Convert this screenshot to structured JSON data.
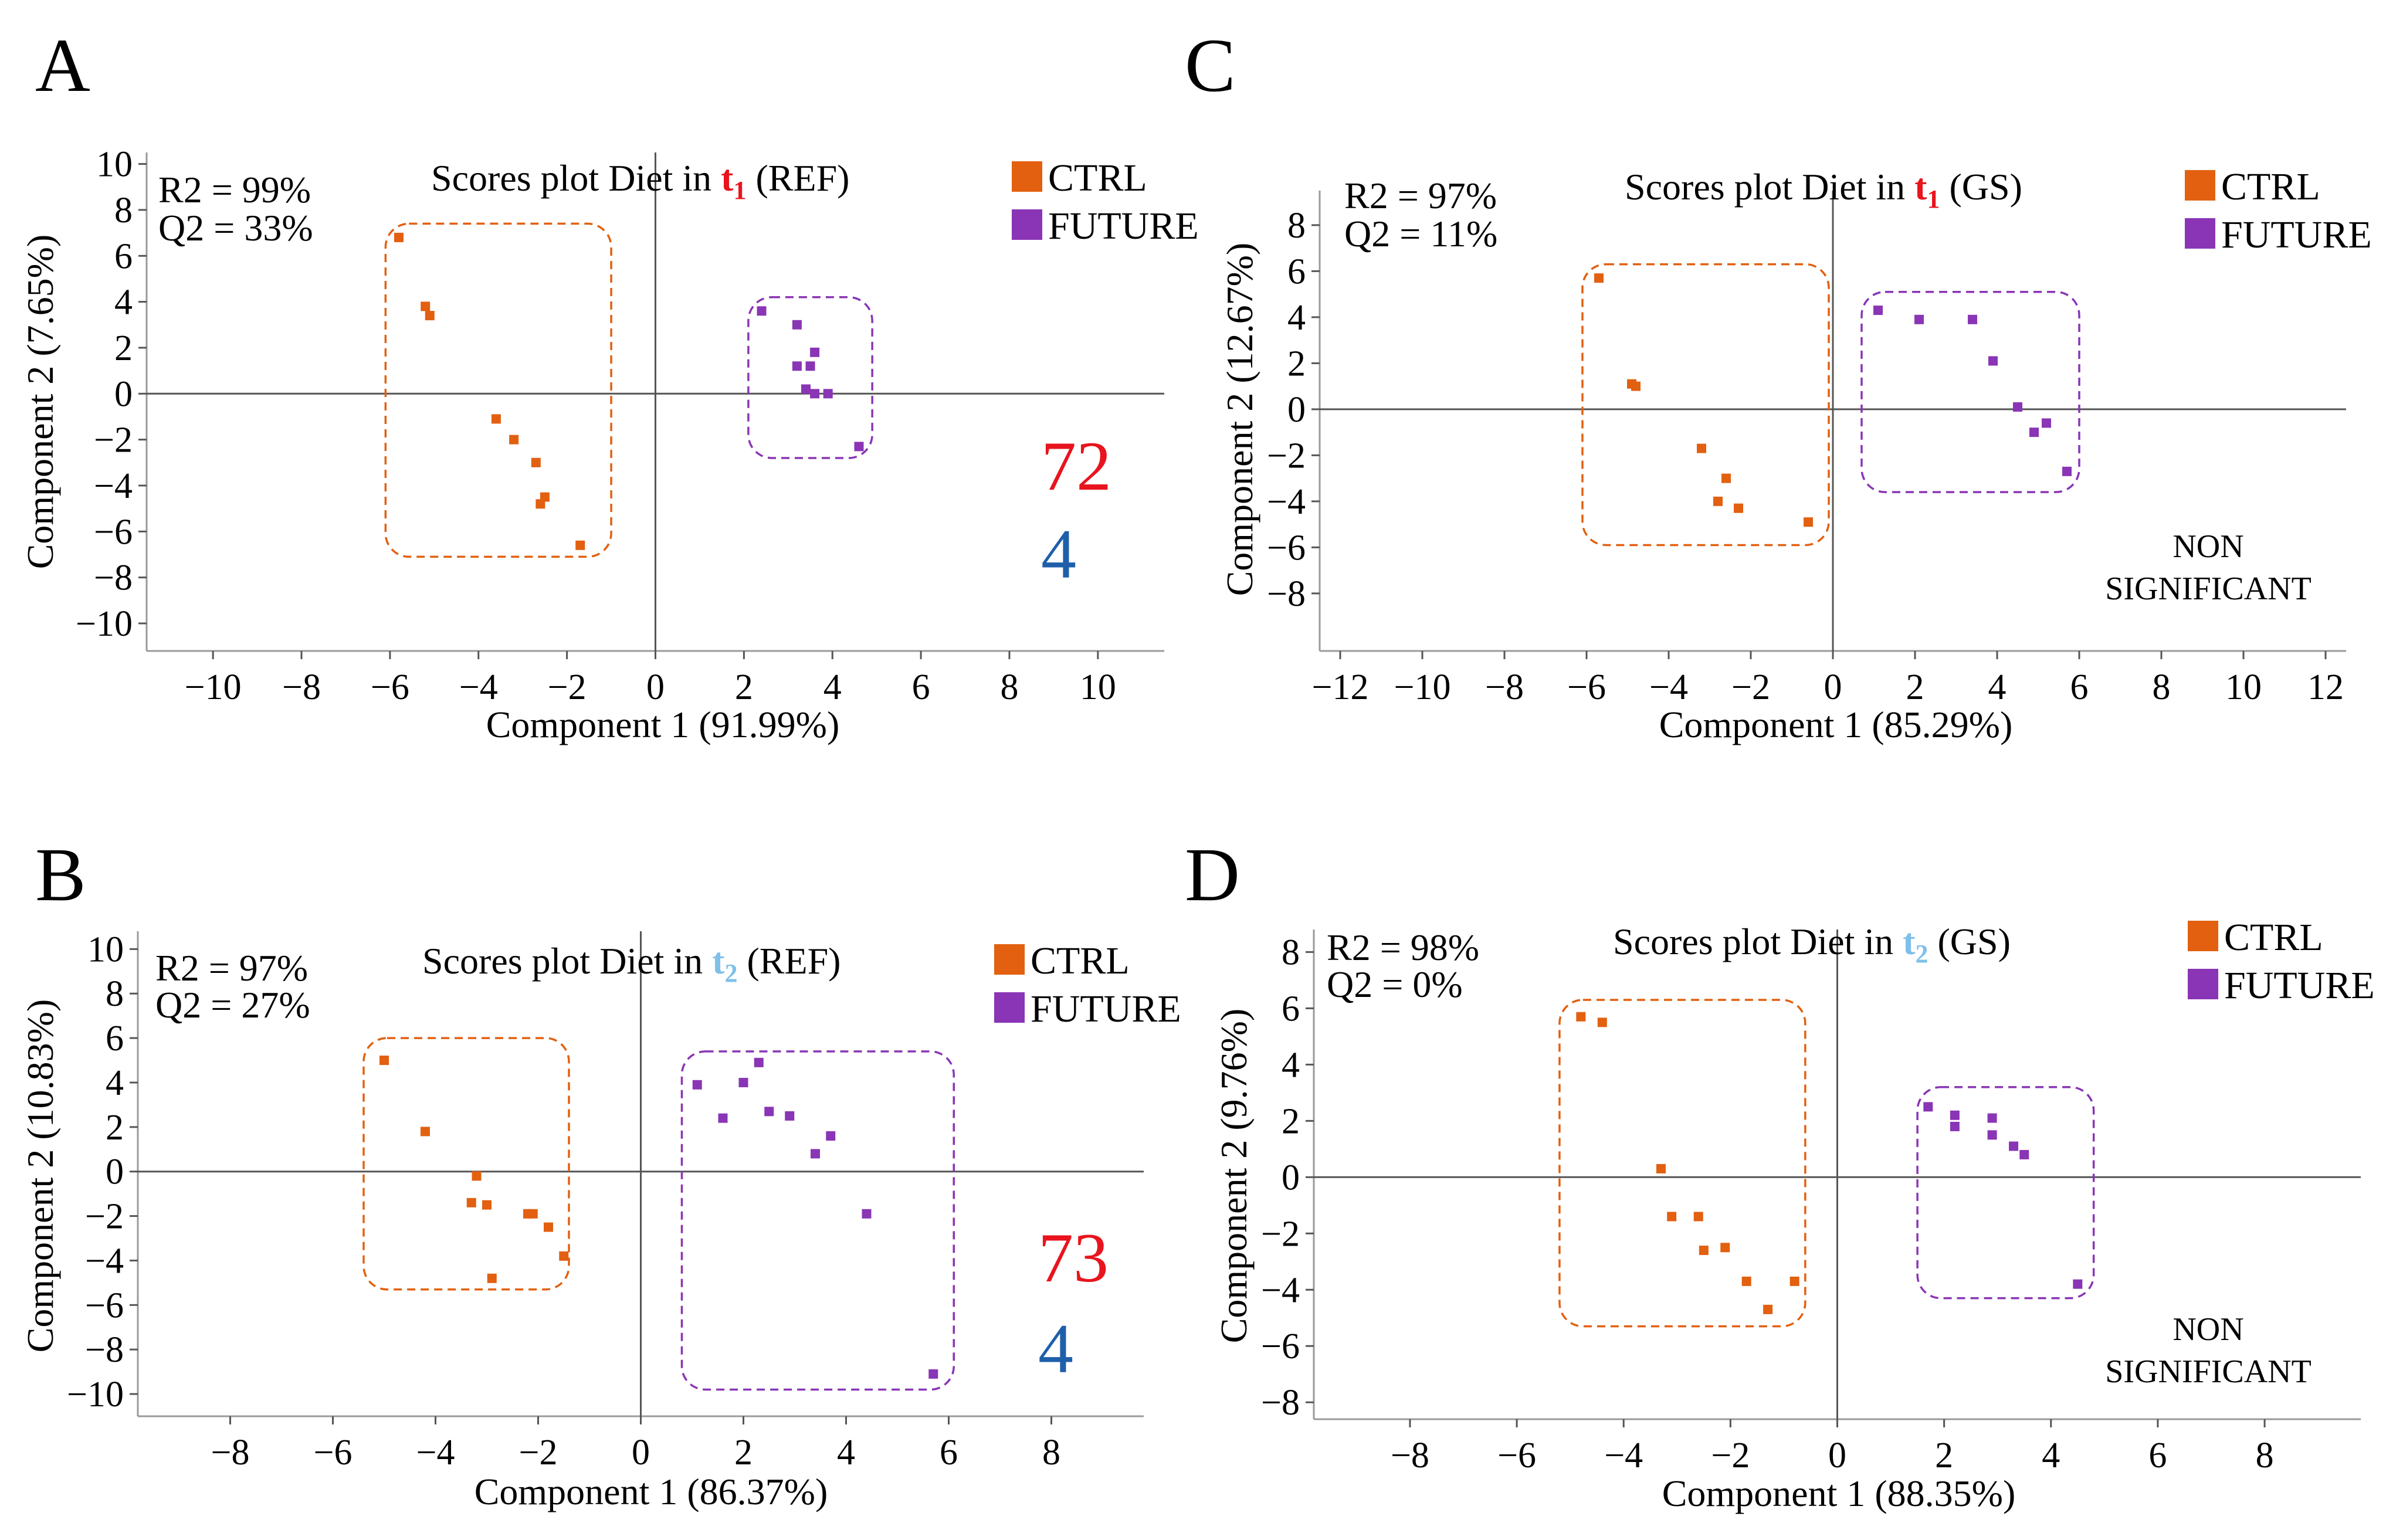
{
  "colors": {
    "ctrl": "#E26010",
    "future": "#8A35B5",
    "red": "#E8141E",
    "blue": "#1F5FAA",
    "lightblue": "#7EC0EA"
  },
  "legend": {
    "ctrl": "CTRL",
    "future": "FUTURE"
  },
  "chart_data": [
    {
      "panel": "A",
      "type": "scatter",
      "title": {
        "prefix": "Scores plot Diet in ",
        "t": "t",
        "sub": "1",
        "suffix": " (REF)",
        "t_color": "red"
      },
      "xlabel": "Component 1 (91.99%)",
      "ylabel": "Component 2 (7.65%)",
      "xlim": [
        -11.5,
        11.5
      ],
      "ylim": [
        -11.2,
        10.5
      ],
      "xticks": [
        -10,
        -8,
        -6,
        -4,
        -2,
        0,
        2,
        4,
        6,
        8,
        10
      ],
      "yticks": [
        10,
        8,
        6,
        4,
        2,
        0,
        -2,
        -4,
        -6,
        -8,
        -10
      ],
      "tick_labels": {
        "-10": "−10",
        "-8": "−8",
        "-6": "−6",
        "-4": "−4",
        "-2": "−2"
      },
      "r2": "R2 = 99%",
      "q2": "Q2 = 33%",
      "note": null,
      "numbers": [
        {
          "text": "72",
          "color": "red"
        },
        {
          "text": "4",
          "color": "blue"
        }
      ],
      "series": [
        {
          "name": "CTRL",
          "points": [
            [
              -5.8,
              6.8
            ],
            [
              -5.2,
              3.8
            ],
            [
              -5.1,
              3.4
            ],
            [
              -3.6,
              -1.1
            ],
            [
              -3.2,
              -2.0
            ],
            [
              -2.7,
              -3.0
            ],
            [
              -2.5,
              -4.5
            ],
            [
              -2.6,
              -4.8
            ],
            [
              -1.7,
              -6.6
            ]
          ]
        },
        {
          "name": "FUTURE",
          "points": [
            [
              2.4,
              3.6
            ],
            [
              3.2,
              3.0
            ],
            [
              3.6,
              1.8
            ],
            [
              3.2,
              1.2
            ],
            [
              3.5,
              1.2
            ],
            [
              3.4,
              0.2
            ],
            [
              3.6,
              0.0
            ],
            [
              3.9,
              0.0
            ],
            [
              4.6,
              -2.3
            ]
          ]
        }
      ],
      "clusters": [
        {
          "series": "CTRL",
          "x": [
            -6.1,
            -1.0
          ],
          "y": [
            -7.1,
            7.4
          ]
        },
        {
          "series": "FUTURE",
          "x": [
            2.1,
            4.9
          ],
          "y": [
            -2.8,
            4.2
          ]
        }
      ]
    },
    {
      "panel": "B",
      "type": "scatter",
      "title": {
        "prefix": "Scores plot Diet in ",
        "t": "t",
        "sub": "2",
        "suffix": " (REF)",
        "t_color": "lightblue"
      },
      "xlabel": "Component 1 (86.37%)",
      "ylabel": "Component 2 (10.83%)",
      "xlim": [
        -9.8,
        9.8
      ],
      "ylim": [
        -11.0,
        10.8
      ],
      "xticks": [
        -8,
        -6,
        -4,
        -2,
        0,
        2,
        4,
        6,
        8
      ],
      "yticks": [
        10,
        8,
        6,
        4,
        2,
        0,
        -2,
        -4,
        -6,
        -8,
        -10
      ],
      "tick_labels": {
        "-10": "−10",
        "-8": "−8",
        "-6": "−6",
        "-4": "−4",
        "-2": "−2"
      },
      "r2": "R2 = 97%",
      "q2": "Q2 = 27%",
      "note": null,
      "numbers": [
        {
          "text": "73",
          "color": "red"
        },
        {
          "text": "4",
          "color": "blue"
        }
      ],
      "series": [
        {
          "name": "CTRL",
          "points": [
            [
              -5.0,
              5.0
            ],
            [
              -4.2,
              1.8
            ],
            [
              -3.2,
              -0.2
            ],
            [
              -3.3,
              -1.4
            ],
            [
              -3.0,
              -1.5
            ],
            [
              -2.2,
              -1.9
            ],
            [
              -2.1,
              -1.9
            ],
            [
              -1.8,
              -2.5
            ],
            [
              -1.5,
              -3.8
            ],
            [
              -2.9,
              -4.8
            ]
          ]
        },
        {
          "name": "FUTURE",
          "points": [
            [
              1.1,
              3.9
            ],
            [
              1.6,
              2.4
            ],
            [
              2.0,
              4.0
            ],
            [
              2.3,
              4.9
            ],
            [
              2.5,
              2.7
            ],
            [
              2.9,
              2.5
            ],
            [
              3.4,
              0.8
            ],
            [
              3.7,
              1.6
            ],
            [
              4.4,
              -1.9
            ],
            [
              5.7,
              -9.1
            ]
          ]
        }
      ],
      "clusters": [
        {
          "series": "CTRL",
          "x": [
            -5.4,
            -1.4
          ],
          "y": [
            -5.3,
            6.0
          ]
        },
        {
          "series": "FUTURE",
          "x": [
            0.8,
            6.1
          ],
          "y": [
            -9.8,
            5.4
          ]
        }
      ]
    },
    {
      "panel": "C",
      "type": "scatter",
      "title": {
        "prefix": "Scores plot Diet in ",
        "t": "t",
        "sub": "1",
        "suffix": " (GS)",
        "t_color": "red"
      },
      "xlabel": "Component 1 (85.29%)",
      "ylabel": "Component 2 (12.67%)",
      "xlim": [
        -12.5,
        12.5
      ],
      "ylim": [
        -10.5,
        9.5
      ],
      "xticks": [
        -12,
        -10,
        -8,
        -6,
        -4,
        -2,
        0,
        2,
        4,
        6,
        8,
        10,
        12
      ],
      "yticks": [
        8,
        6,
        4,
        2,
        0,
        -2,
        -4,
        -6,
        -8
      ],
      "tick_labels": {
        "-12": "−12",
        "-10": "−10",
        "-8": "−8",
        "-6": "−6",
        "-4": "−4",
        "-2": "−2"
      },
      "r2": "R2 = 97%",
      "q2": "Q2 = 11%",
      "note": {
        "line1": "NON",
        "line2": "SIGNIFICANT"
      },
      "numbers": [],
      "series": [
        {
          "name": "CTRL",
          "points": [
            [
              -5.7,
              5.7
            ],
            [
              -4.9,
              1.1
            ],
            [
              -4.8,
              1.0
            ],
            [
              -3.2,
              -1.7
            ],
            [
              -2.6,
              -3.0
            ],
            [
              -2.8,
              -4.0
            ],
            [
              -2.3,
              -4.3
            ],
            [
              -0.6,
              -4.9
            ]
          ]
        },
        {
          "name": "FUTURE",
          "points": [
            [
              1.1,
              4.3
            ],
            [
              2.1,
              3.9
            ],
            [
              3.4,
              3.9
            ],
            [
              3.9,
              2.1
            ],
            [
              4.5,
              0.1
            ],
            [
              4.9,
              -1.0
            ],
            [
              5.2,
              -0.6
            ],
            [
              5.7,
              -2.7
            ]
          ]
        }
      ],
      "clusters": [
        {
          "series": "CTRL",
          "x": [
            -6.1,
            -0.1
          ],
          "y": [
            -5.9,
            6.3
          ]
        },
        {
          "series": "FUTURE",
          "x": [
            0.7,
            6.0
          ],
          "y": [
            -3.6,
            5.1
          ]
        }
      ]
    },
    {
      "panel": "D",
      "type": "scatter",
      "title": {
        "prefix": "Scores plot Diet in ",
        "t": "t",
        "sub": "2",
        "suffix": " (GS)",
        "t_color": "lightblue"
      },
      "xlabel": "Component 1 (88.35%)",
      "ylabel": "Component 2 (9.76%)",
      "xlim": [
        -9.8,
        9.8
      ],
      "ylim": [
        -8.6,
        8.8
      ],
      "xticks": [
        -8,
        -6,
        -4,
        -2,
        0,
        2,
        4,
        6,
        8
      ],
      "yticks": [
        8,
        6,
        4,
        2,
        0,
        -2,
        -4,
        -6,
        -8
      ],
      "tick_labels": {
        "-8": "−8",
        "-6": "−6",
        "-4": "−4",
        "-2": "−2"
      },
      "r2": "R2 = 98%",
      "q2": "Q2 = 0%",
      "note": {
        "line1": "NON",
        "line2": "SIGNIFICANT"
      },
      "numbers": [],
      "series": [
        {
          "name": "CTRL",
          "points": [
            [
              -4.8,
              5.7
            ],
            [
              -4.4,
              5.5
            ],
            [
              -3.3,
              0.3
            ],
            [
              -3.1,
              -1.4
            ],
            [
              -2.6,
              -1.4
            ],
            [
              -2.5,
              -2.6
            ],
            [
              -2.1,
              -2.5
            ],
            [
              -1.7,
              -3.7
            ],
            [
              -1.3,
              -4.7
            ],
            [
              -0.8,
              -3.7
            ]
          ]
        },
        {
          "name": "FUTURE",
          "points": [
            [
              1.7,
              2.5
            ],
            [
              2.2,
              2.2
            ],
            [
              2.2,
              1.8
            ],
            [
              2.9,
              2.1
            ],
            [
              2.9,
              1.5
            ],
            [
              3.3,
              1.1
            ],
            [
              3.5,
              0.8
            ],
            [
              4.5,
              -3.8
            ]
          ]
        }
      ],
      "clusters": [
        {
          "series": "CTRL",
          "x": [
            -5.2,
            -0.6
          ],
          "y": [
            -5.3,
            6.3
          ]
        },
        {
          "series": "FUTURE",
          "x": [
            1.5,
            4.8
          ],
          "y": [
            -4.3,
            3.2
          ]
        }
      ]
    }
  ]
}
